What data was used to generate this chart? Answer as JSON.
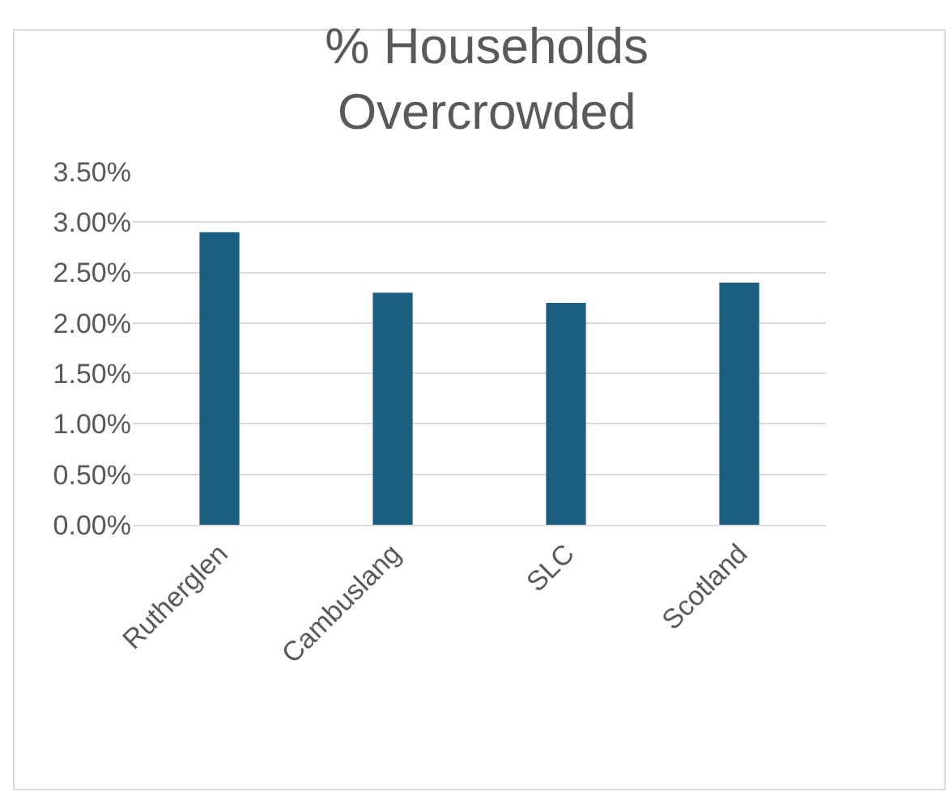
{
  "chart_data": {
    "type": "bar",
    "title": "% Households Overcrowded",
    "categories": [
      "Rutherglen",
      "Cambuslang",
      "SLC",
      "Scotland"
    ],
    "values": [
      2.9,
      2.3,
      2.2,
      2.4
    ],
    "color": "#1b5e80",
    "ylim": [
      0,
      3.5
    ],
    "yticks": [
      {
        "value": 0,
        "label": "0.00%"
      },
      {
        "value": 0.5,
        "label": "0.50%"
      },
      {
        "value": 1,
        "label": "1.00%"
      },
      {
        "value": 1.5,
        "label": "1.50%"
      },
      {
        "value": 2,
        "label": "2.00%"
      },
      {
        "value": 2.5,
        "label": "2.50%"
      },
      {
        "value": 3,
        "label": "3.00%"
      },
      {
        "value": 3.5,
        "label": "3.50%"
      }
    ],
    "grid": "y",
    "legend": false
  }
}
